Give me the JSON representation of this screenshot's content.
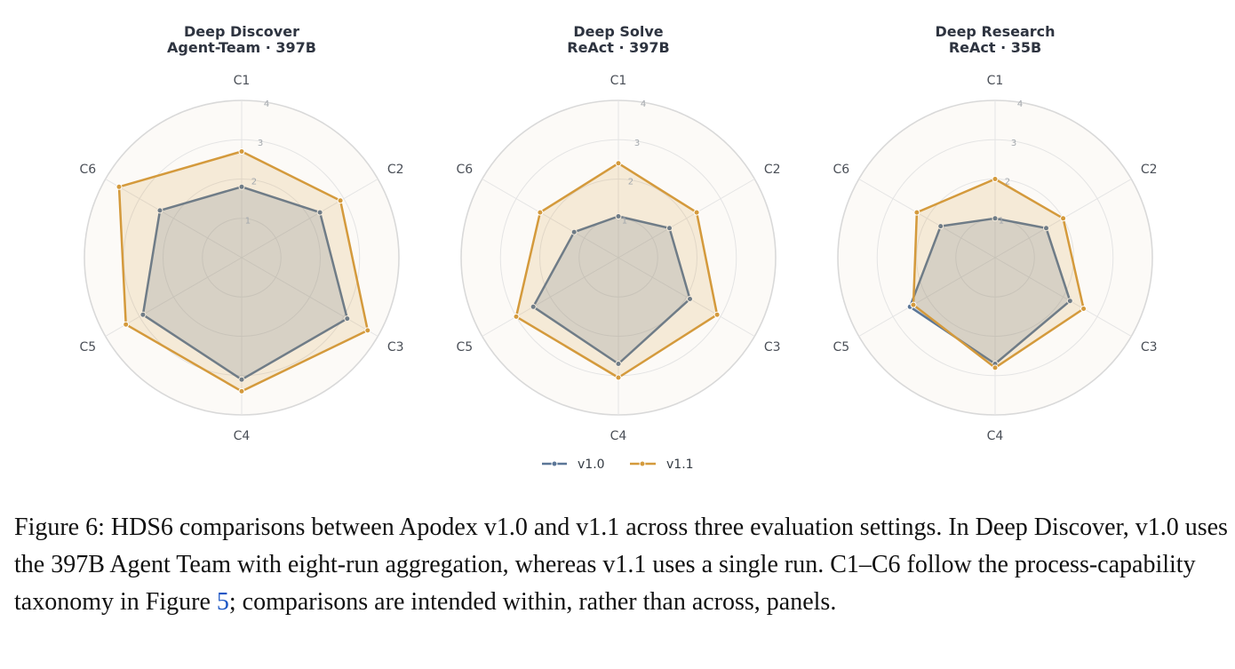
{
  "chart_data": {
    "type": "radar",
    "axes": [
      "C1",
      "C2",
      "C3",
      "C4",
      "C5",
      "C6"
    ],
    "rmax": 4,
    "ticks": [
      "1",
      "2",
      "3",
      "4"
    ],
    "grid": true,
    "legend_position": "bottom-center",
    "colors": {
      "v1.0": "#5b7697",
      "v1.1": "#d49a3c"
    },
    "panels": [
      {
        "title_line1": "Deep Discover",
        "title_line2": "Agent-Team · 397B",
        "series": [
          {
            "name": "v1.0",
            "values": [
              1.8,
              2.3,
              3.1,
              3.1,
              2.9,
              2.4
            ]
          },
          {
            "name": "v1.1",
            "values": [
              2.7,
              2.9,
              3.7,
              3.4,
              3.4,
              3.6
            ]
          }
        ]
      },
      {
        "title_line1": "Deep Solve",
        "title_line2": "ReAct · 397B",
        "series": [
          {
            "name": "v1.0",
            "values": [
              1.05,
              1.5,
              2.1,
              2.7,
              2.5,
              1.3
            ]
          },
          {
            "name": "v1.1",
            "values": [
              2.4,
              2.3,
              2.9,
              3.05,
              3.0,
              2.3
            ]
          }
        ]
      },
      {
        "title_line1": "Deep Research",
        "title_line2": "ReAct · 35B",
        "series": [
          {
            "name": "v1.0",
            "values": [
              1.0,
              1.5,
              2.2,
              2.7,
              2.5,
              1.6
            ]
          },
          {
            "name": "v1.1",
            "values": [
              2.0,
              2.0,
              2.6,
              2.8,
              2.4,
              2.3
            ]
          }
        ]
      }
    ]
  },
  "caption": {
    "part1": "Figure 6: HDS6 comparisons between Apodex v1.0 and v1.1 across three evaluation settings. In Deep Discover, v1.0 uses the 397B Agent Team with eight-run aggregation, whereas v1.1 uses a single run. C1–C6 follow the process-capability taxonomy in Figure ",
    "link": "5",
    "part2": "; comparisons are intended within, rather than across, panels."
  }
}
